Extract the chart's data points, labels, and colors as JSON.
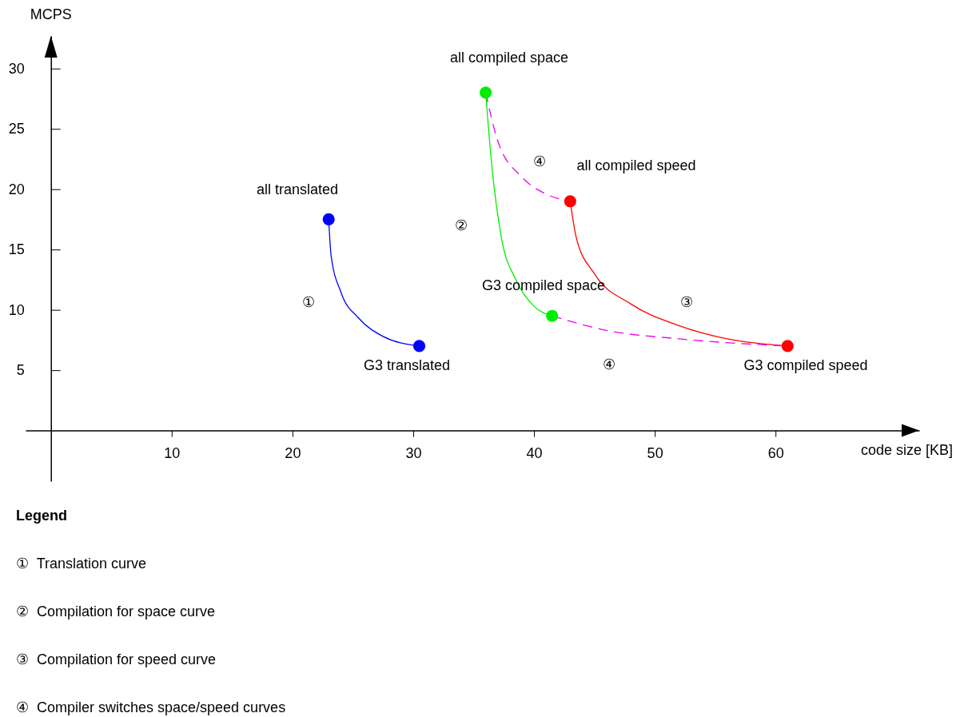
{
  "chart_data": {
    "type": "line",
    "xlabel": "code size [KB]",
    "ylabel": "MCPS",
    "xlim": [
      -2.1,
      71.9
    ],
    "ylim": [
      -4.2,
      32.7
    ],
    "xticks": [
      10,
      20,
      30,
      40,
      50,
      60
    ],
    "yticks": [
      5,
      10,
      15,
      20,
      25,
      30
    ],
    "grid": false,
    "series": [
      {
        "type": "line",
        "color": "#0000ff",
        "line_style": "solid",
        "marker": "none",
        "x": [
          23,
          23.2,
          24,
          25.5,
          27.5,
          30.5
        ],
        "values": [
          17.5,
          14.5,
          11.5,
          9.3,
          7.8,
          7
        ]
      },
      {
        "type": "line",
        "color": "#00ee00",
        "line_style": "solid",
        "marker": "none",
        "x": [
          36,
          36.5,
          37.3,
          38.5,
          40,
          41.5
        ],
        "values": [
          28,
          22,
          16,
          12.5,
          10.3,
          9.5
        ]
      },
      {
        "type": "line",
        "color": "#ff0000",
        "line_style": "solid",
        "marker": "none",
        "x": [
          43,
          43.5,
          45,
          48,
          52,
          56,
          61
        ],
        "values": [
          19,
          16,
          13,
          10.5,
          8.7,
          7.6,
          7
        ]
      },
      {
        "type": "line",
        "color": "#ee00ee",
        "line_style": "dashed",
        "marker": "none",
        "x": [
          36,
          37,
          39,
          41,
          43
        ],
        "values": [
          28,
          24,
          21,
          19.6,
          19
        ]
      },
      {
        "type": "line",
        "color": "#ee00ee",
        "line_style": "dashed",
        "marker": "none",
        "x": [
          41.5,
          46,
          52,
          61
        ],
        "values": [
          9.5,
          8.3,
          7.6,
          7
        ]
      },
      {
        "type": "scatter",
        "marker": "circle",
        "x": [
          23,
          30.5,
          36,
          41.5,
          43,
          61
        ],
        "values": [
          17.5,
          7,
          28,
          9.5,
          19,
          7
        ],
        "colors": [
          "#0000ff",
          "#0000ff",
          "#00ee00",
          "#00ee00",
          "#ff0000",
          "#ff0000"
        ]
      }
    ],
    "annotations": [
      "all translated",
      "G3 translated",
      "all compiled space",
      "G3 compiled space",
      "all compiled speed",
      "G3 compiled speed",
      "①",
      "②",
      "③",
      "④",
      "④",
      "Legend",
      "①  Translation curve",
      "②  Compilation for space curve",
      "③  Compilation for speed curve",
      "④  Compiler switches space/speed curves"
    ]
  }
}
